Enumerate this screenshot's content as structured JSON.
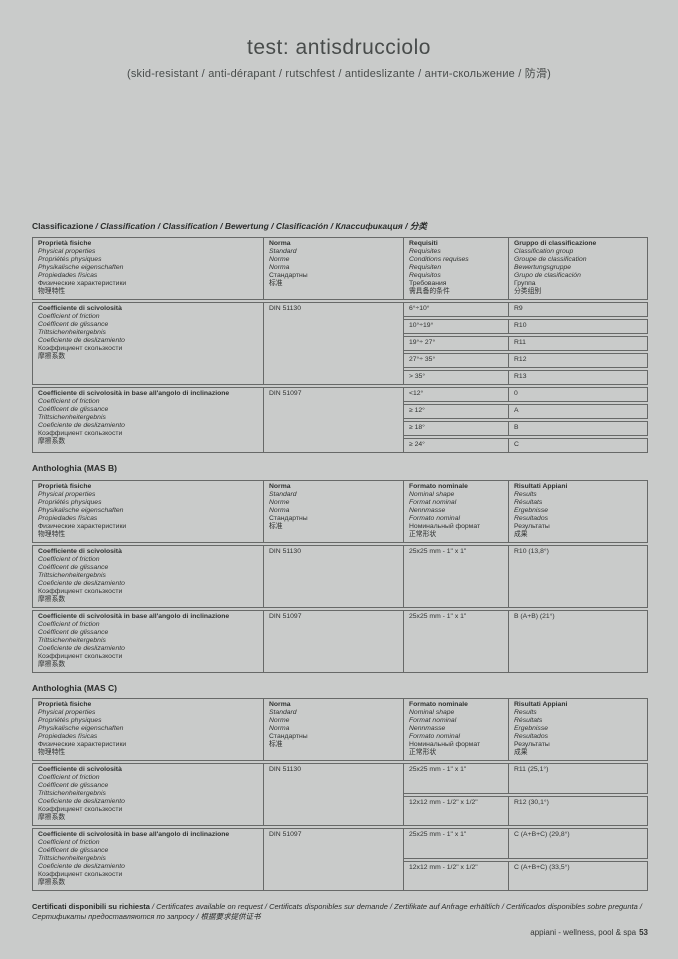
{
  "page": {
    "title": "test: antisdrucciolo",
    "subtitle": "(skid-resistant / anti-dérapant / rutschfest / antideslizante / анти-скольжение / 防滑)",
    "footer_brand": "appiani - wellness, pool & spa",
    "footer_page": "53"
  },
  "classification": {
    "title_main": "Classificazione",
    "title_rest": "/ Classification / Classification / Bewertung / Clasificación / Классификация / 分类",
    "header": {
      "property": [
        "Proprietà fisiche",
        "Physical properties",
        "Propriétés physiques",
        "Physikalische eigenschaften",
        "Propiedades físicas",
        "Физические характеристики",
        "物理特性"
      ],
      "norma": [
        "Norma",
        "Standard",
        "Norme",
        "Norma",
        "Стандартны",
        "标准"
      ],
      "requisiti": [
        "Requisiti",
        "Requisites",
        "Conditions requises",
        "Requisiten",
        "Requisitos",
        "Требования",
        "需具备的条件"
      ],
      "gruppo": [
        "Gruppo di classificazione",
        "Classification group",
        "Groupe de classification",
        "Bewertungsgruppe",
        "Grupo de clasificación",
        "Группа",
        "分类组别"
      ]
    },
    "groups": [
      {
        "property": [
          "Coefficiente di scivolosità",
          "Coefficient of friction",
          "Coéfficent de glissance",
          "Trittsichenheitergebnis",
          "Coeficiente de deslizamiento",
          "Коэффициент скользкости",
          "摩擦系数"
        ],
        "norma": "DIN 51130",
        "rows": [
          {
            "req": "6°÷10°",
            "grp": "R9"
          },
          {
            "req": "10°÷19°",
            "grp": "R10"
          },
          {
            "req": "19°÷ 27°",
            "grp": "R11"
          },
          {
            "req": "27°÷ 35°",
            "grp": "R12"
          },
          {
            "req": "> 35°",
            "grp": "R13"
          }
        ]
      },
      {
        "property": [
          "Coefficiente di scivolosità in base all'angolo di inclinazione",
          "Coefficient of friction",
          "Coéfficent de glissance",
          "Trittsichenheitergebnis",
          "Coeficiente de deslizamiento",
          "Коэффициент скользкости",
          "摩擦系数"
        ],
        "norma": "DIN 51097",
        "rows": [
          {
            "req": "<12°",
            "grp": "0"
          },
          {
            "req": "≥ 12°",
            "grp": "A"
          },
          {
            "req": "≥ 18°",
            "grp": "B"
          },
          {
            "req": "≥ 24°",
            "grp": "C"
          }
        ]
      }
    ]
  },
  "mas_b": {
    "title": "Anthologhia (MAS B)",
    "header": {
      "property": [
        "Proprietà fisiche",
        "Physical properties",
        "Propriétés physiques",
        "Physikalische eigenschaften",
        "Propiedades físicas",
        "Физические характеристики",
        "物理特性"
      ],
      "norma": [
        "Norma",
        "Standard",
        "Norme",
        "Norma",
        "Стандартны",
        "标准"
      ],
      "formato": [
        "Formato nominale",
        "Nominal shape",
        "Format nominal",
        "Nennmasse",
        "Formato nominal",
        "Номинальный формат",
        "正常形状"
      ],
      "risultati": [
        "Risultati Appiani",
        "Results",
        "Résultats",
        "Ergebnisse",
        "Resultados",
        "Результаты",
        "成果"
      ]
    },
    "rows": [
      {
        "property": [
          "Coefficiente di scivolosità",
          "Coefficient of friction",
          "Coéfficent de glissance",
          "Trittsichenheitergebnis",
          "Coeficiente de deslizamiento",
          "Коэффициент скользкости",
          "摩擦系数"
        ],
        "norma": "DIN 51130",
        "formato": "25x25 mm - 1\" x 1\"",
        "risultato": "R10 (13,8°)"
      },
      {
        "property": [
          "Coefficiente di scivolosità in base all'angolo di inclinazione",
          "Coefficient of friction",
          "Coéfficent de glissance",
          "Trittsichenheitergebnis",
          "Coeficiente de deslizamiento",
          "Коэффициент скользкости",
          "摩擦系数"
        ],
        "norma": "DIN 51097",
        "formato": "25x25 mm - 1\" x 1\"",
        "risultato": "B (A+B) (21°)"
      }
    ]
  },
  "mas_c": {
    "title": "Anthologhia (MAS C)",
    "header": {
      "property": [
        "Proprietà fisiche",
        "Physical properties",
        "Propriétés physiques",
        "Physikalische eigenschaften",
        "Propiedades físicas",
        "Физические характеристики",
        "物理特性"
      ],
      "norma": [
        "Norma",
        "Standard",
        "Norme",
        "Norma",
        "Стандартны",
        "标准"
      ],
      "formato": [
        "Formato nominale",
        "Nominal shape",
        "Format nominal",
        "Nennmasse",
        "Formato nominal",
        "Номинальный формат",
        "正常形状"
      ],
      "risultati": [
        "Risultati Appiani",
        "Results",
        "Résultats",
        "Ergebnisse",
        "Resultados",
        "Результаты",
        "成果"
      ]
    },
    "groups": [
      {
        "property": [
          "Coefficiente di scivolosità",
          "Coefficient of friction",
          "Coéfficent de glissance",
          "Trittsichenheitergebnis",
          "Coeficiente de deslizamiento",
          "Коэффициент скользкости",
          "摩擦系数"
        ],
        "norma": "DIN 51130",
        "rows": [
          {
            "formato": "25x25 mm - 1\" x 1\"",
            "risultato": "R11 (25,1°)"
          },
          {
            "formato": "12x12 mm - 1/2\" x 1/2\"",
            "risultato": "R12 (30,1°)"
          }
        ]
      },
      {
        "property": [
          "Coefficiente di scivolosità in base all'angolo di inclinazione",
          "Coefficient of friction",
          "Coéfficent de glissance",
          "Trittsichenheitergebnis",
          "Coeficiente de deslizamiento",
          "Коэффициент скользкости",
          "摩擦系数"
        ],
        "norma": "DIN 51097",
        "rows": [
          {
            "formato": "25x25 mm - 1\" x 1\"",
            "risultato": "C (A+B+C) (29,8°)"
          },
          {
            "formato": "12x12 mm - 1/2\" x 1/2\"",
            "risultato": "C (A+B+C) (33,5°)"
          }
        ]
      }
    ]
  },
  "certificates": {
    "main": "Certificati disponibili su richiesta",
    "rest": "/ Certificates available on request / Certificats disponibles sur demande / Zertifikate auf Anfrage erhältlich / Certificados disponibles sobre pregunta / Сертификаты предоставляются по запросу / 根据要求提供证书"
  }
}
